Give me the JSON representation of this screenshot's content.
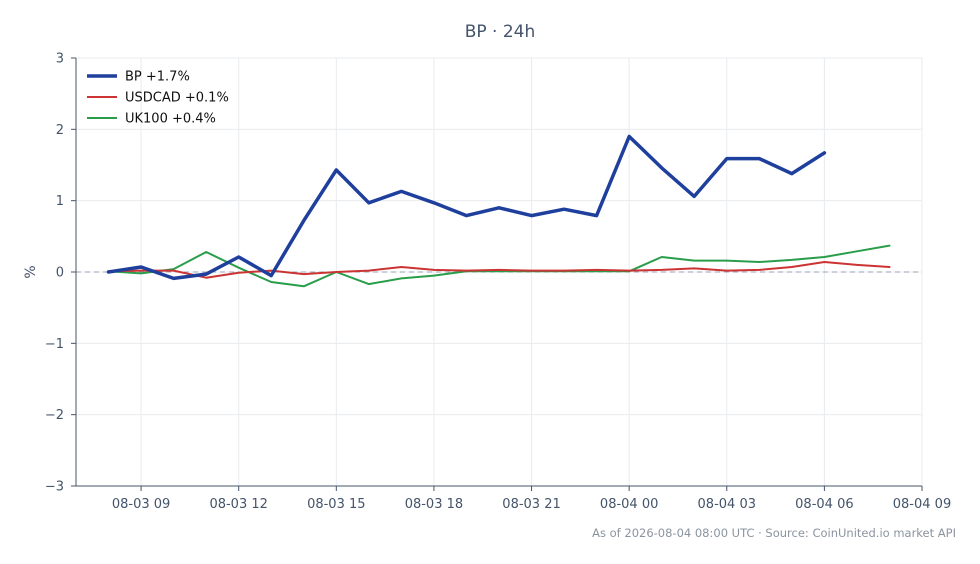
{
  "chart_data": {
    "type": "line",
    "title": "BP · 24h",
    "ylabel": "%",
    "xlabel": "",
    "ylim": [
      -3,
      3
    ],
    "xlim": [
      "2026-08-03 07:00",
      "2026-08-04 09:00"
    ],
    "grid": true,
    "legend_position": "top-left",
    "zero_line": {
      "style": "dashed",
      "color": "#9aa0b4"
    },
    "x_ticks": [
      "08-03 09",
      "08-03 12",
      "08-03 15",
      "08-03 18",
      "08-03 21",
      "08-04 00",
      "08-04 03",
      "08-04 06",
      "08-04 09"
    ],
    "y_ticks": [
      "−3",
      "−2",
      "−1",
      "0",
      "1",
      "2",
      "3"
    ],
    "x": [
      "2026-08-03 08:00",
      "2026-08-03 09:00",
      "2026-08-03 10:00",
      "2026-08-03 11:00",
      "2026-08-03 12:00",
      "2026-08-03 13:00",
      "2026-08-03 14:00",
      "2026-08-03 15:00",
      "2026-08-03 16:00",
      "2026-08-03 17:00",
      "2026-08-03 18:00",
      "2026-08-03 19:00",
      "2026-08-03 20:00",
      "2026-08-03 21:00",
      "2026-08-03 22:00",
      "2026-08-03 23:00",
      "2026-08-04 00:00",
      "2026-08-04 01:00",
      "2026-08-04 02:00",
      "2026-08-04 03:00",
      "2026-08-04 04:00",
      "2026-08-04 05:00",
      "2026-08-04 06:00",
      "2026-08-04 07:00",
      "2026-08-04 08:00"
    ],
    "series": [
      {
        "name": "BP +1.7%",
        "color": "#1f3f9c",
        "width": 3.5,
        "values": [
          0.0,
          0.07,
          -0.09,
          -0.03,
          0.21,
          -0.05,
          0.72,
          1.43,
          0.97,
          1.13,
          0.97,
          0.79,
          0.9,
          0.79,
          0.88,
          0.79,
          1.9,
          1.46,
          1.06,
          1.59,
          1.59,
          1.38,
          1.67,
          null,
          null
        ]
      },
      {
        "name": "USDCAD +0.1%",
        "color": "#cc3333",
        "width": 2,
        "values": [
          0.01,
          0.02,
          0.02,
          -0.08,
          -0.01,
          0.02,
          -0.03,
          0.0,
          0.02,
          0.07,
          0.03,
          0.02,
          0.03,
          0.02,
          0.02,
          0.03,
          0.02,
          0.03,
          0.05,
          0.02,
          0.03,
          0.07,
          0.14,
          0.1,
          0.07
        ]
      },
      {
        "name": "UK100 +0.4%",
        "color": "#2a9d4a",
        "width": 2,
        "values": [
          0.01,
          -0.02,
          0.04,
          0.28,
          0.06,
          -0.14,
          -0.2,
          0.0,
          -0.17,
          -0.09,
          -0.05,
          0.01,
          0.01,
          0.01,
          0.01,
          0.01,
          0.01,
          0.21,
          0.16,
          0.16,
          0.14,
          0.17,
          0.21,
          0.29,
          0.37
        ]
      }
    ]
  },
  "footer": {
    "note": "As of 2026-08-04 08:00 UTC · Source: CoinUnited.io market API"
  }
}
